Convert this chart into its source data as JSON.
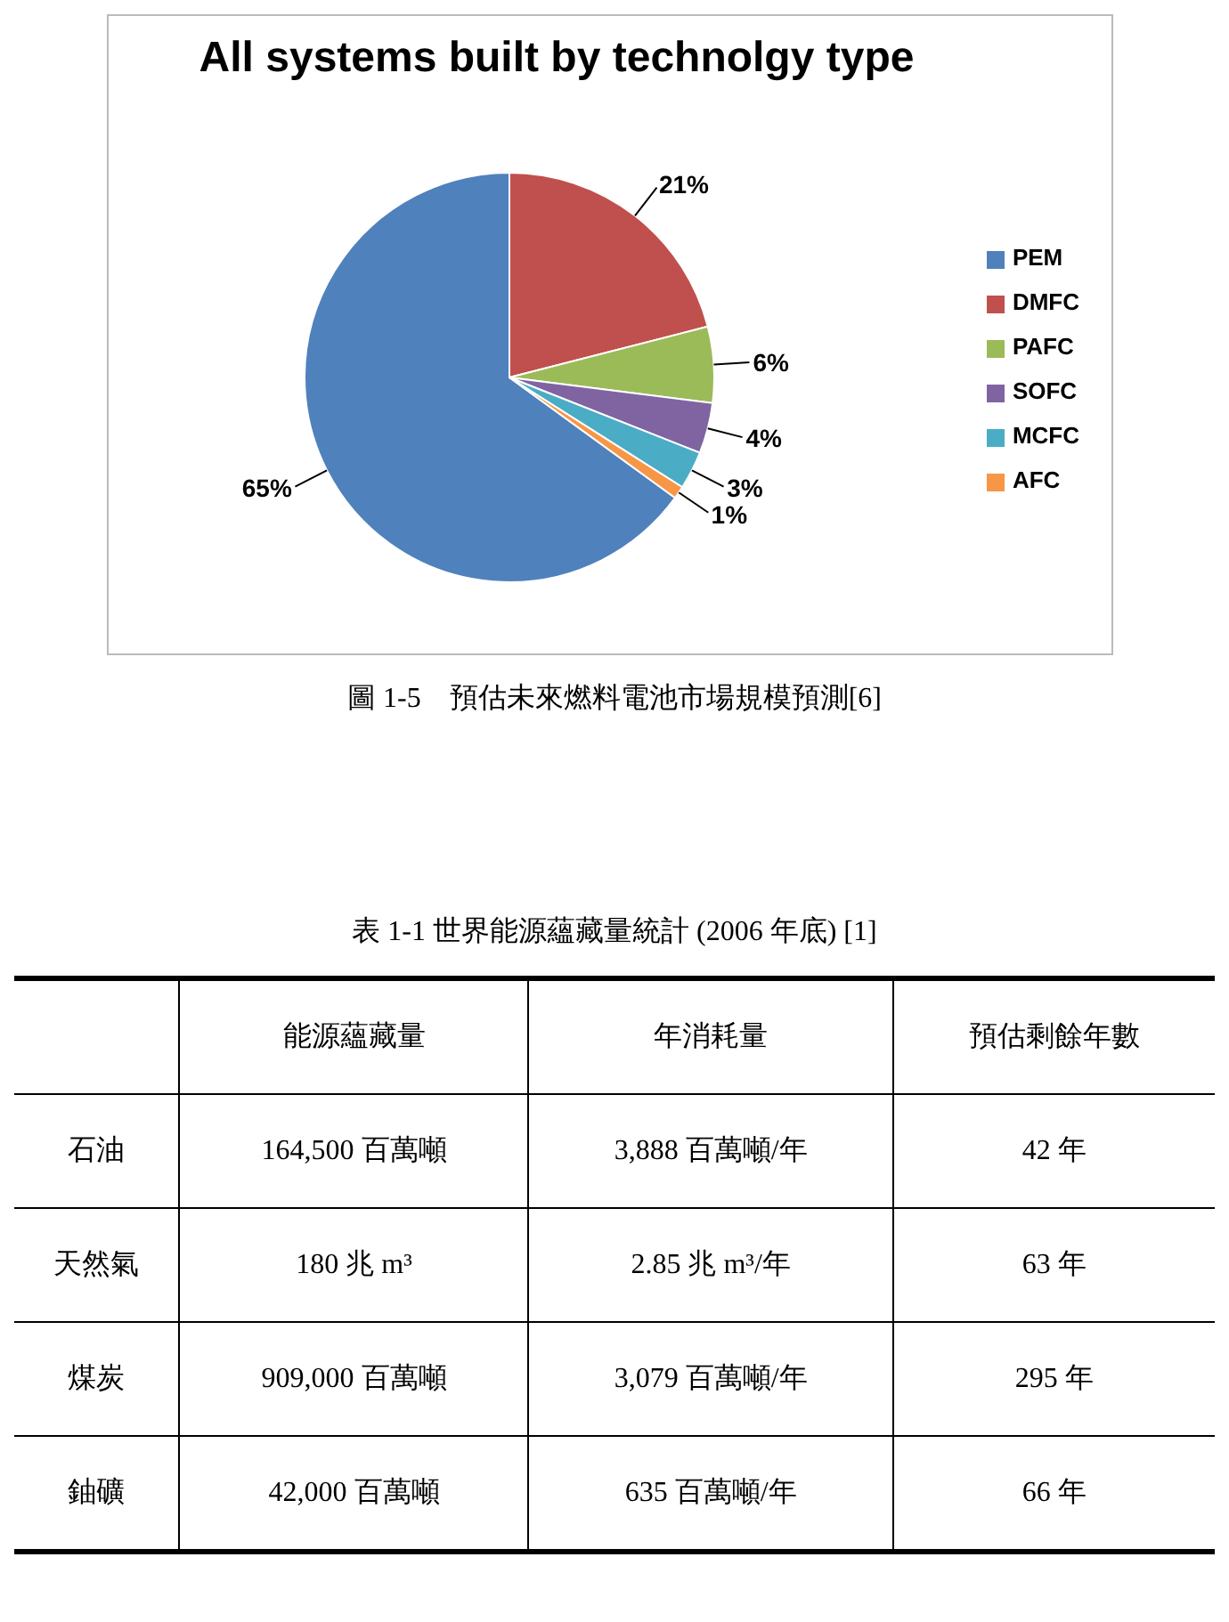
{
  "chart_data": [
    {
      "type": "pie",
      "title": "All systems built by technolgy type",
      "categories": [
        "PEM",
        "DMFC",
        "PAFC",
        "SOFC",
        "MCFC",
        "AFC"
      ],
      "values": [
        65,
        21,
        6,
        4,
        3,
        1
      ],
      "colors": [
        "#4f81bd",
        "#c0504d",
        "#9bbb59",
        "#8064a2",
        "#4bacc6",
        "#f79646"
      ],
      "value_labels": [
        "65%",
        "21%",
        "6%",
        "4%",
        "3%",
        "1%"
      ],
      "legend": "right",
      "annotations": [
        "圖 1-5　預估未來燃料電池市場規模預測[6]"
      ]
    },
    {
      "type": "other",
      "title": "表 1-1 世界能源蘊藏量統計 (2006 年底) [1]",
      "categories": [
        null,
        "能源蘊藏量",
        "年消耗量",
        "預估剩餘年數"
      ],
      "y_categories": [
        "石油",
        "天然氣",
        "煤炭",
        "鈾礦"
      ],
      "cell_labels": [
        [
          "164,500 百萬噸",
          "3,888 百萬噸/年",
          "42 年"
        ],
        [
          "180 兆 m³",
          "2.85 兆 m³/年",
          "63 年"
        ],
        [
          "909,000 百萬噸",
          "3,079 百萬噸/年",
          "295 年"
        ],
        [
          "42,000 百萬噸",
          "635 百萬噸/年",
          "66 年"
        ]
      ]
    }
  ]
}
